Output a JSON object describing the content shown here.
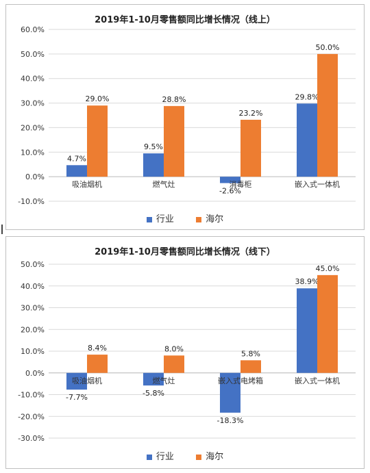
{
  "colors": {
    "industry": "#4472C4",
    "haier": "#ED7D31"
  },
  "chart_data": [
    {
      "type": "bar",
      "title": "2019年1-10月零售额同比增长情况（线上）",
      "categories": [
        "吸油烟机",
        "燃气灶",
        "消毒柜",
        "嵌入式一体机"
      ],
      "series": [
        {
          "name": "行业",
          "values": [
            4.7,
            9.5,
            -2.6,
            29.8
          ],
          "labels": [
            "4.7%",
            "9.5%",
            "-2.6%",
            "29.8%"
          ]
        },
        {
          "name": "海尔",
          "values": [
            29.0,
            28.8,
            23.2,
            50.0
          ],
          "labels": [
            "29.0%",
            "28.8%",
            "23.2%",
            "50.0%"
          ]
        }
      ],
      "yticks": [
        "60.0%",
        "50.0%",
        "40.0%",
        "30.0%",
        "20.0%",
        "10.0%",
        "0.0%",
        "-10.0%"
      ],
      "ylim": [
        -10,
        60
      ],
      "grid": true,
      "legend": "bottom"
    },
    {
      "type": "bar",
      "title": "2019年1-10月零售额同比增长情况（线下）",
      "categories": [
        "吸油烟机",
        "燃气灶",
        "嵌入式电烤箱",
        "嵌入式一体机"
      ],
      "series": [
        {
          "name": "行业",
          "values": [
            -7.7,
            -5.8,
            -18.3,
            38.9
          ],
          "labels": [
            "-7.7%",
            "-5.8%",
            "-18.3%",
            "38.9%"
          ]
        },
        {
          "name": "海尔",
          "values": [
            8.4,
            8.0,
            5.8,
            45.0
          ],
          "labels": [
            "8.4%",
            "8.0%",
            "5.8%",
            "45.0%"
          ]
        }
      ],
      "yticks": [
        "50.0%",
        "40.0%",
        "30.0%",
        "20.0%",
        "10.0%",
        "0.0%",
        "-10.0%",
        "-20.0%",
        "-30.0%"
      ],
      "ylim": [
        -30,
        50
      ],
      "grid": true,
      "legend": "bottom"
    }
  ]
}
